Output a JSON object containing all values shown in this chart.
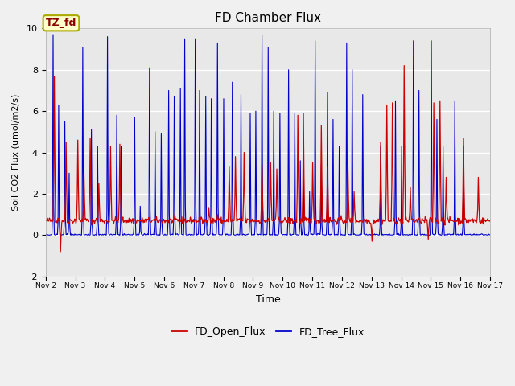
{
  "title": "FD Chamber Flux",
  "xlabel": "Time",
  "ylabel_display": "Soil CO2 Flux (umol/m2/s)",
  "ylim": [
    -2,
    10
  ],
  "yticks": [
    -2,
    0,
    2,
    4,
    6,
    8,
    10
  ],
  "xtick_labels": [
    "Nov 2",
    "Nov 3",
    "Nov 4",
    "Nov 5",
    "Nov 6",
    "Nov 7",
    "Nov 8",
    "Nov 9",
    "Nov 10",
    "Nov 11",
    "Nov 12",
    "Nov 13",
    "Nov 14",
    "Nov 15",
    "Nov 16",
    "Nov 17"
  ],
  "open_color": "#cc0000",
  "tree_color": "#0000cc",
  "bg_color": "#e8e8e8",
  "annotation_text": "TZ_fd",
  "annotation_facecolor": "#ffffcc",
  "annotation_edgecolor": "#aaaa00",
  "annotation_textcolor": "#880000",
  "legend_labels": [
    "FD_Open_Flux",
    "FD_Tree_Flux"
  ],
  "grid_color": "#ffffff",
  "figsize": [
    6.4,
    4.8
  ],
  "dpi": 100
}
